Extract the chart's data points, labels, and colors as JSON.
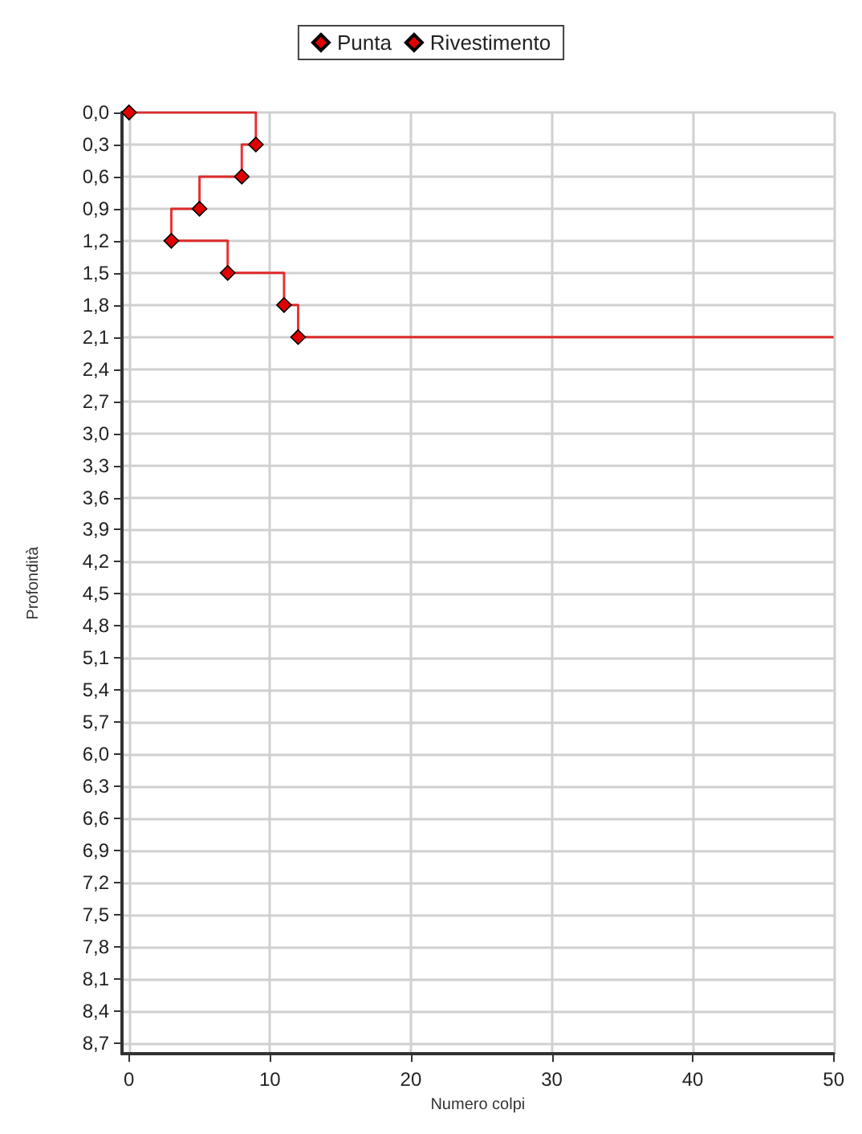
{
  "chart_data": {
    "type": "step",
    "xlabel": "Numero colpi",
    "ylabel": "Profondità",
    "series": [
      {
        "name": "Punta",
        "color": "#e00000",
        "x": [
          0,
          9,
          8,
          5,
          3,
          7,
          11,
          12
        ],
        "values": [
          0,
          0.3,
          0.6,
          0.9,
          1.2,
          1.5,
          1.8,
          2.1
        ]
      },
      {
        "name": "Rivestimento",
        "color": "#e00000",
        "marker": "none",
        "x": [
          12,
          50
        ],
        "values": [
          2.1,
          2.1
        ]
      }
    ],
    "xlim": [
      -0.5,
      50
    ],
    "xticks": [
      0,
      10,
      20,
      30,
      40,
      50
    ],
    "ylim": [
      8.8,
      0
    ],
    "yticks": [
      {
        "value": 0,
        "label": "0,0"
      },
      {
        "value": 0.3,
        "label": "0,3"
      },
      {
        "value": 0.6,
        "label": "0,6"
      },
      {
        "value": 0.9,
        "label": "0,9"
      },
      {
        "value": 1.2,
        "label": "1,2"
      },
      {
        "value": 1.5,
        "label": "1,5"
      },
      {
        "value": 1.8,
        "label": "1,8"
      },
      {
        "value": 2.1,
        "label": "2,1"
      },
      {
        "value": 2.4,
        "label": "2,4"
      },
      {
        "value": 2.7,
        "label": "2,7"
      },
      {
        "value": 3.0,
        "label": "3,0"
      },
      {
        "value": 3.3,
        "label": "3,3"
      },
      {
        "value": 3.6,
        "label": "3,6"
      },
      {
        "value": 3.9,
        "label": "3,9"
      },
      {
        "value": 4.2,
        "label": "4,2"
      },
      {
        "value": 4.5,
        "label": "4,5"
      },
      {
        "value": 4.8,
        "label": "4,8"
      },
      {
        "value": 5.1,
        "label": "5,1"
      },
      {
        "value": 5.4,
        "label": "5,4"
      },
      {
        "value": 5.7,
        "label": "5,7"
      },
      {
        "value": 6.0,
        "label": "6,0"
      },
      {
        "value": 6.3,
        "label": "6,3"
      },
      {
        "value": 6.6,
        "label": "6,6"
      },
      {
        "value": 6.9,
        "label": "6,9"
      },
      {
        "value": 7.2,
        "label": "7,2"
      },
      {
        "value": 7.5,
        "label": "7,5"
      },
      {
        "value": 7.8,
        "label": "7,8"
      },
      {
        "value": 8.1,
        "label": "8,1"
      },
      {
        "value": 8.4,
        "label": "8,4"
      },
      {
        "value": 8.7,
        "label": "8,7"
      }
    ],
    "grid": true,
    "legend": "top",
    "marker": "diamond",
    "line_style": "solid"
  }
}
